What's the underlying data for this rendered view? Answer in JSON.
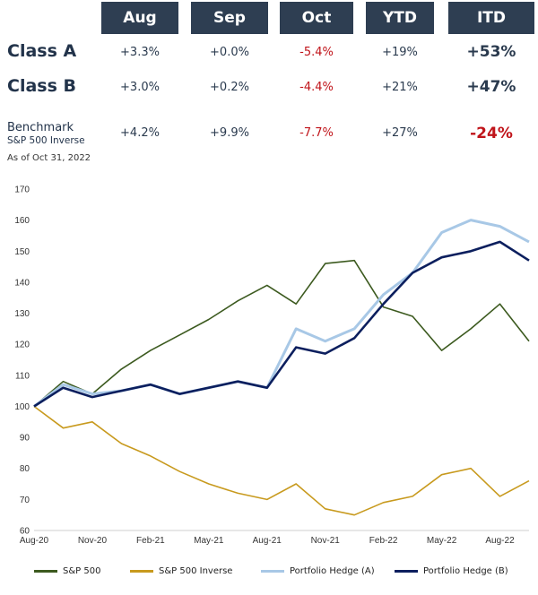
{
  "table": {
    "headers": [
      "Aug",
      "Sep",
      "Oct",
      "YTD",
      "ITD"
    ],
    "rows": [
      {
        "label": "Class A",
        "values": [
          "+3.3%",
          "+0.0%",
          "-5.4%",
          "+19%",
          "+53%"
        ]
      },
      {
        "label": "Class B",
        "values": [
          "+3.0%",
          "+0.2%",
          "-4.4%",
          "+21%",
          "+47%"
        ]
      },
      {
        "label": "Benchmark",
        "sublabel": "S&P 500 Inverse",
        "values": [
          "+4.2%",
          "+9.9%",
          "-7.7%",
          "+27%",
          "-24%"
        ]
      }
    ],
    "as_of": "As of Oct 31, 2022"
  },
  "colors": {
    "header_bg": "#2e3e52",
    "negative": "#c0141a",
    "sp500": "#3c5a1f",
    "sp500_inverse": "#c89a1e",
    "hedge_a": "#a8c8e6",
    "hedge_b": "#0c1f5e"
  },
  "chart_data": {
    "type": "line",
    "x": [
      "Aug-20",
      "Oct-20",
      "Nov-20",
      "Jan-21",
      "Feb-21",
      "Apr-21",
      "May-21",
      "Jul-21",
      "Aug-21",
      "Oct-21",
      "Nov-21",
      "Jan-22",
      "Feb-22",
      "Apr-22",
      "May-22",
      "Jul-22",
      "Aug-22",
      "Oct-22"
    ],
    "x_ticks": [
      "Aug-20",
      "Nov-20",
      "Feb-21",
      "May-21",
      "Aug-21",
      "Nov-21",
      "Feb-22",
      "May-22",
      "Aug-22"
    ],
    "ylim": [
      60,
      170
    ],
    "y_ticks": [
      60,
      70,
      80,
      90,
      100,
      110,
      120,
      130,
      140,
      150,
      160,
      170
    ],
    "grid": false,
    "legend_position": "bottom",
    "series": [
      {
        "name": "S&P 500",
        "color_key": "sp500",
        "values": [
          100,
          108,
          104,
          112,
          118,
          123,
          128,
          134,
          139,
          133,
          146,
          147,
          132,
          129,
          118,
          125,
          133,
          121
        ]
      },
      {
        "name": "S&P 500 Inverse",
        "color_key": "sp500_inverse",
        "values": [
          100,
          93,
          95,
          88,
          84,
          79,
          75,
          72,
          70,
          75,
          67,
          65,
          69,
          71,
          78,
          80,
          71,
          76
        ]
      },
      {
        "name": "Portfolio Hedge (A)",
        "color_key": "hedge_a",
        "values": [
          100,
          107,
          104,
          105,
          107,
          104,
          106,
          108,
          106,
          125,
          121,
          125,
          136,
          143,
          156,
          160,
          158,
          153
        ]
      },
      {
        "name": "Portfolio Hedge (B)",
        "color_key": "hedge_b",
        "values": [
          100,
          106,
          103,
          105,
          107,
          104,
          106,
          108,
          106,
          119,
          117,
          122,
          133,
          143,
          148,
          150,
          153,
          147
        ]
      }
    ]
  }
}
